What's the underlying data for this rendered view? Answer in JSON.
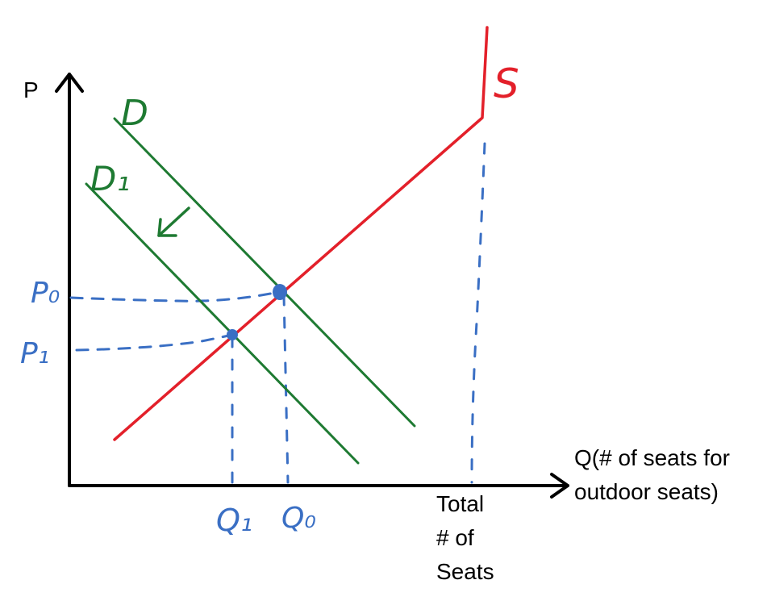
{
  "chart_data": {
    "type": "line",
    "title": "",
    "ylabel": "P",
    "xlabel": [
      "Q(# of seats for",
      "outdoor seats)"
    ],
    "grid": false,
    "legend": "none",
    "series": [
      {
        "name": "S",
        "kind": "supply",
        "color": "#e3202a"
      },
      {
        "name": "D",
        "kind": "demand",
        "color": "#1e7a32"
      },
      {
        "name": "D₁",
        "kind": "demand",
        "color": "#1e7a32"
      }
    ],
    "equilibria": [
      {
        "name": "original",
        "price_label": "P₀",
        "quantity_label": "Q₀",
        "curves": [
          "S",
          "D"
        ]
      },
      {
        "name": "new",
        "price_label": "P₁",
        "quantity_label": "Q₁",
        "curves": [
          "S",
          "D₁"
        ]
      }
    ],
    "capacity_label": [
      "Total",
      "# of",
      "Seats"
    ],
    "annotations": [
      {
        "type": "arrow",
        "meaning": "demand shifts left",
        "from": "D",
        "to": "D₁",
        "color": "#1e7a32"
      }
    ]
  }
}
